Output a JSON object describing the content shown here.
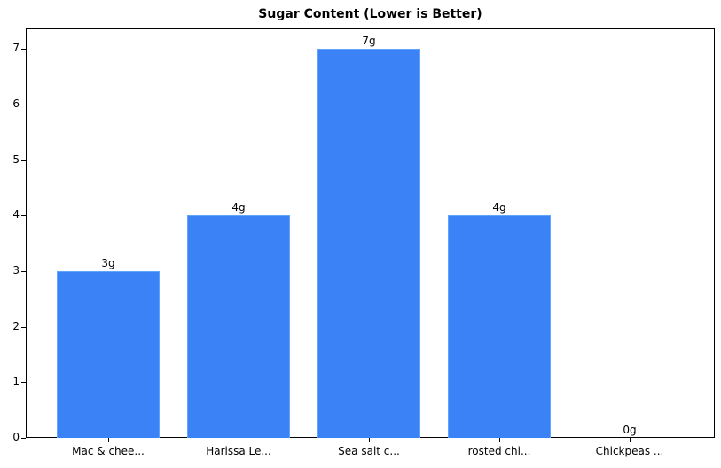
{
  "chart_data": {
    "type": "bar",
    "title": "Sugar Content (Lower is Better)",
    "xlabel": "",
    "ylabel": "",
    "categories": [
      "Mac & chee...",
      "Harissa Le...",
      "Sea salt c...",
      "rosted chi...",
      "Chickpeas ..."
    ],
    "values": [
      3,
      4,
      7,
      4,
      0
    ],
    "value_labels": [
      "3g",
      "4g",
      "7g",
      "4g",
      "0g"
    ],
    "ylim": [
      0,
      7.35
    ],
    "yticks": [
      0,
      1,
      2,
      3,
      4,
      5,
      6,
      7
    ],
    "grid": false,
    "legend": null,
    "bar_color": "#3b82f6"
  }
}
